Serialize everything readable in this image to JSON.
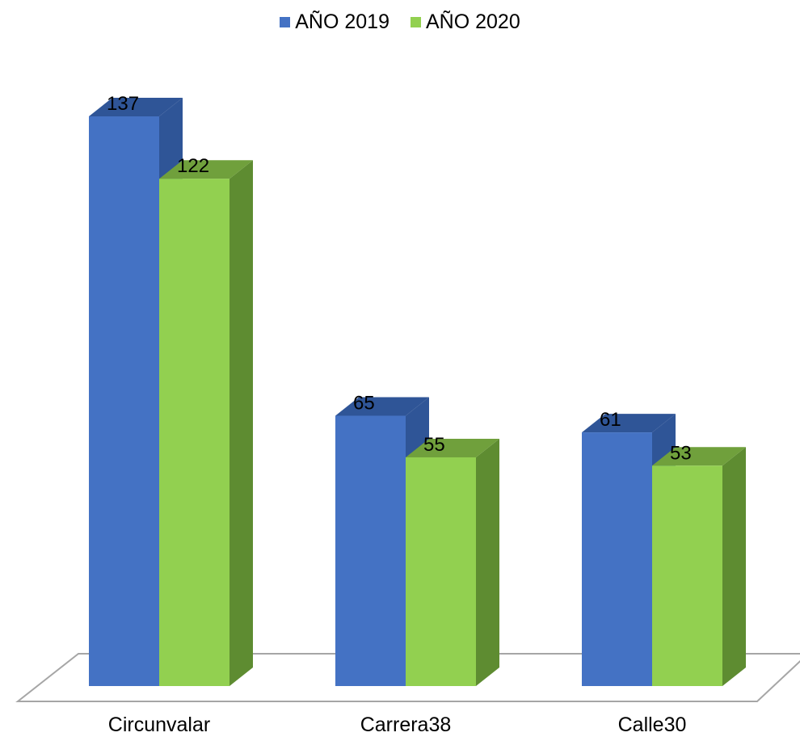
{
  "chart_data": {
    "type": "bar",
    "title": "",
    "xlabel": "",
    "ylabel": "",
    "categories": [
      "Circunvalar",
      "Carrera38",
      "Calle30"
    ],
    "series": [
      {
        "name": "AÑO 2019",
        "values": [
          137,
          65,
          61
        ],
        "color": "#4472C4",
        "side_color": "#2F5597",
        "top_color": "#2F5597"
      },
      {
        "name": "AÑO 2020",
        "values": [
          122,
          55,
          53
        ],
        "color": "#92D050",
        "side_color": "#5E8C31",
        "top_color": "#70A03C"
      }
    ],
    "ylim": [
      0,
      140
    ],
    "grid": false,
    "legend": "top-center",
    "style": "3d-column"
  }
}
